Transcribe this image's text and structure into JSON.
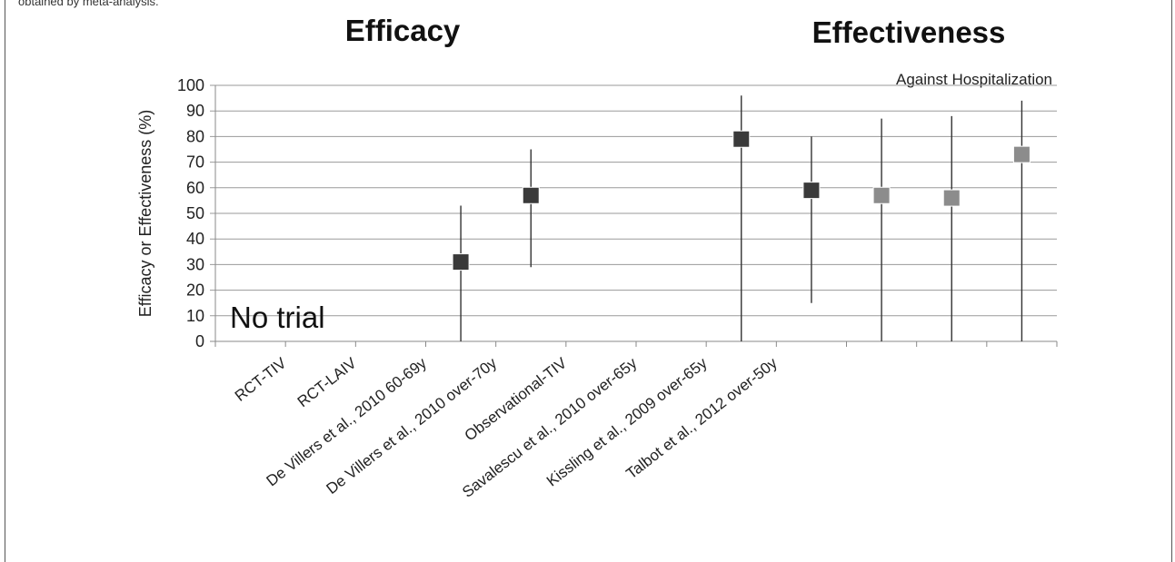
{
  "caption": "obtained by meta-analysis.",
  "headings": {
    "left": "Efficacy",
    "right": "Effectiveness"
  },
  "annotation": "Against Hospitalization",
  "no_trial_label": "No trial",
  "colors": {
    "dark": "#3a3a3a",
    "light": "#8c8c8c"
  },
  "chart_data": {
    "type": "scatter",
    "ylabel": "Efficacy or Effectiveness (%)",
    "ylim": [
      0,
      100
    ],
    "yticks": [
      0,
      10,
      20,
      30,
      40,
      50,
      60,
      70,
      80,
      90,
      100
    ],
    "grid": true,
    "categories": [
      "RCT-TIV",
      "RCT-LAIV",
      "De Villers et al., 2010 60-69y",
      "De Villers et al., 2010 over-70y",
      "Observational-TIV",
      "Savalescu et al., 2010 over-65y",
      "Kissling et al., 2009 over-65y",
      "Talbot et al., 2012 over-50y"
    ],
    "points": [
      {
        "slot": 3.5,
        "value": 31,
        "low": 0,
        "high": 53,
        "shade": "dark"
      },
      {
        "slot": 4.5,
        "value": 57,
        "low": 29,
        "high": 75,
        "shade": "dark"
      },
      {
        "slot": 7.5,
        "value": 79,
        "low": 0,
        "high": 96,
        "shade": "dark"
      },
      {
        "slot": 8.5,
        "value": 59,
        "low": 15,
        "high": 80,
        "shade": "dark"
      },
      {
        "slot": 9.5,
        "value": 57,
        "low": 0,
        "high": 87,
        "shade": "light"
      },
      {
        "slot": 10.5,
        "value": 56,
        "low": 0,
        "high": 88,
        "shade": "light"
      },
      {
        "slot": 11.5,
        "value": 73,
        "low": 0,
        "high": 94,
        "shade": "light"
      }
    ]
  }
}
